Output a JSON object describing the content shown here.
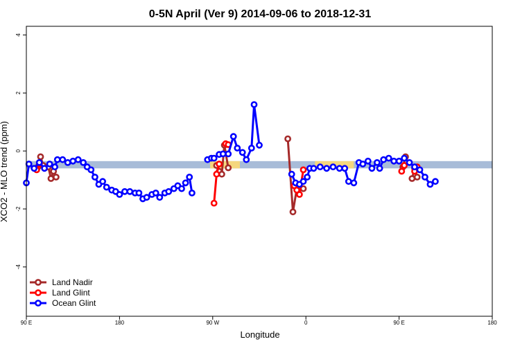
{
  "chart_data": {
    "type": "line",
    "title": "0-5N April (Ver 9)   2014-09-06 to 2018-12-31",
    "xlabel": "Longitude",
    "ylabel": "XCO2 - MLO trend (ppm)",
    "xlim": [
      -90,
      270
    ],
    "ylim": [
      -5.7,
      4.3
    ],
    "x_ticks": [
      {
        "value": -90,
        "label": "90 E"
      },
      {
        "value": -18,
        "label": "180"
      },
      {
        "value": 54,
        "label": "90 W"
      },
      {
        "value": 126,
        "label": "0"
      },
      {
        "value": 198,
        "label": "90 E"
      },
      {
        "value": 270,
        "label": "180"
      }
    ],
    "y_ticks": [
      {
        "value": 4,
        "label": "4"
      },
      {
        "value": 2,
        "label": "2"
      },
      {
        "value": 0,
        "label": "0"
      },
      {
        "value": -2,
        "label": "-2"
      },
      {
        "value": -4,
        "label": "-4"
      }
    ],
    "bands": [
      {
        "y_range": [
          -0.6,
          -0.35
        ],
        "x_range": [
          -90,
          270
        ],
        "color": "#a8bcd8"
      },
      {
        "y_range": [
          -0.6,
          -0.35
        ],
        "x_range": [
          52,
          75
        ],
        "color": "#f5d77e"
      },
      {
        "y_range": [
          -0.6,
          -0.35
        ],
        "x_range": [
          133,
          163
        ],
        "color": "#f5d77e"
      }
    ],
    "legend_position": "bottom-left",
    "series": [
      {
        "name": "Land Nadir",
        "color": "#a52a2a",
        "segments": [
          [
            [
              -81,
              -0.55
            ],
            [
              -79,
              -0.2
            ],
            [
              -77,
              -0.5
            ]
          ],
          [
            [
              -73,
              -0.55
            ],
            [
              -71,
              -0.95
            ],
            [
              -69,
              -0.7
            ],
            [
              -67,
              -0.9
            ]
          ],
          [
            [
              57,
              -0.5
            ],
            [
              59,
              -0.7
            ],
            [
              61,
              -0.8
            ],
            [
              63,
              0.2
            ],
            [
              66,
              -0.58
            ]
          ],
          [
            [
              112,
              0.42
            ],
            [
              116,
              -2.1
            ],
            [
              119,
              -1.3
            ],
            [
              121,
              -1.25
            ],
            [
              124,
              -1.3
            ]
          ],
          [
            [
              201,
              -0.55
            ],
            [
              203,
              -0.2
            ]
          ],
          [
            [
              208,
              -0.95
            ],
            [
              210,
              -0.6
            ],
            [
              212,
              -0.9
            ]
          ]
        ]
      },
      {
        "name": "Land Glint",
        "color": "#ff0000",
        "segments": [
          [
            [
              -82,
              -0.65
            ],
            [
              -80,
              -0.45
            ]
          ],
          [
            [
              55,
              -1.8
            ],
            [
              57,
              -0.8
            ],
            [
              59,
              -0.45
            ]
          ],
          [
            [
              64,
              0.25
            ],
            [
              66,
              0.22
            ]
          ],
          [
            [
              117,
              -1.2
            ],
            [
              119,
              -1.35
            ],
            [
              121,
              -1.5
            ],
            [
              124,
              -0.65
            ]
          ],
          [
            [
              200,
              -0.7
            ],
            [
              202,
              -0.5
            ]
          ],
          [
            [
              210,
              -0.7
            ],
            [
              212,
              -0.55
            ]
          ]
        ]
      },
      {
        "name": "Ocean Glint",
        "color": "#0000ff",
        "segments": [
          [
            [
              -90,
              -1.1
            ],
            [
              -88,
              -0.45
            ],
            [
              -84,
              -0.6
            ],
            [
              -80,
              -0.4
            ],
            [
              -76,
              -0.6
            ],
            [
              -72,
              -0.45
            ],
            [
              -68,
              -0.55
            ],
            [
              -66,
              -0.3
            ],
            [
              -62,
              -0.3
            ],
            [
              -58,
              -0.4
            ],
            [
              -54,
              -0.35
            ],
            [
              -50,
              -0.3
            ],
            [
              -46,
              -0.4
            ],
            [
              -43,
              -0.55
            ],
            [
              -40,
              -0.65
            ],
            [
              -37,
              -0.9
            ],
            [
              -34,
              -1.15
            ],
            [
              -31,
              -1.05
            ],
            [
              -28,
              -1.25
            ],
            [
              -24,
              -1.35
            ],
            [
              -21,
              -1.4
            ],
            [
              -18,
              -1.5
            ],
            [
              -14,
              -1.4
            ],
            [
              -10,
              -1.4
            ],
            [
              -6,
              -1.45
            ],
            [
              -3,
              -1.45
            ],
            [
              0,
              -1.65
            ],
            [
              3,
              -1.6
            ],
            [
              7,
              -1.5
            ],
            [
              10,
              -1.45
            ],
            [
              13,
              -1.6
            ],
            [
              17,
              -1.45
            ],
            [
              20,
              -1.4
            ],
            [
              24,
              -1.3
            ],
            [
              27,
              -1.2
            ],
            [
              30,
              -1.3
            ],
            [
              33,
              -1.1
            ],
            [
              36,
              -0.9
            ],
            [
              38,
              -1.45
            ]
          ],
          [
            [
              50,
              -0.3
            ],
            [
              53,
              -0.25
            ],
            [
              55,
              -0.25
            ],
            [
              59,
              -0.12
            ],
            [
              62,
              -0.1
            ],
            [
              66,
              -0.1
            ],
            [
              70,
              0.5
            ],
            [
              73,
              0.1
            ],
            [
              77,
              -0.05
            ],
            [
              80,
              -0.3
            ],
            [
              84,
              0.1
            ],
            [
              86,
              1.6
            ],
            [
              90,
              0.2
            ]
          ],
          [
            [
              115,
              -0.8
            ],
            [
              118,
              -1.1
            ],
            [
              121,
              -1.15
            ],
            [
              124,
              -1.05
            ],
            [
              127,
              -0.9
            ],
            [
              129,
              -0.6
            ],
            [
              132,
              -0.6
            ],
            [
              137,
              -0.55
            ],
            [
              142,
              -0.6
            ],
            [
              147,
              -0.55
            ],
            [
              152,
              -0.6
            ],
            [
              156,
              -0.6
            ],
            [
              159,
              -1.05
            ],
            [
              163,
              -1.1
            ],
            [
              167,
              -0.4
            ],
            [
              170,
              -0.45
            ],
            [
              174,
              -0.35
            ],
            [
              177,
              -0.6
            ],
            [
              181,
              -0.4
            ],
            [
              183,
              -0.6
            ],
            [
              186,
              -0.3
            ],
            [
              190,
              -0.25
            ],
            [
              194,
              -0.35
            ],
            [
              198,
              -0.35
            ],
            [
              202,
              -0.25
            ],
            [
              206,
              -0.4
            ],
            [
              210,
              -0.55
            ],
            [
              214,
              -0.65
            ],
            [
              218,
              -0.9
            ],
            [
              222,
              -1.15
            ],
            [
              226,
              -1.05
            ]
          ]
        ]
      }
    ]
  }
}
